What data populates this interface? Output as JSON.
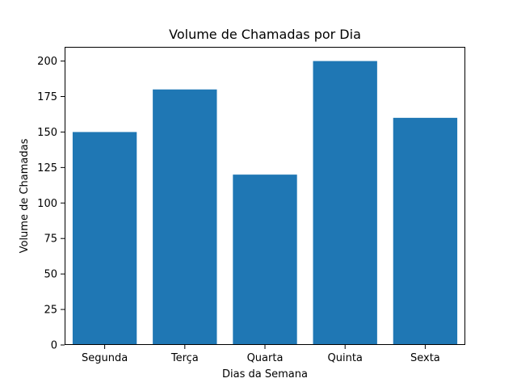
{
  "chart_data": {
    "type": "bar",
    "title": "Volume de Chamadas por Dia",
    "xlabel": "Dias da Semana",
    "ylabel": "Volume de Chamadas",
    "categories": [
      "Segunda",
      "Terça",
      "Quarta",
      "Quinta",
      "Sexta"
    ],
    "values": [
      150,
      180,
      120,
      200,
      160
    ],
    "ylim": [
      0,
      210
    ],
    "yticks": [
      "0",
      "25",
      "50",
      "75",
      "100",
      "125",
      "150",
      "175",
      "200"
    ],
    "bar_color": "#1f77b4",
    "grid": false,
    "legend": "none"
  }
}
